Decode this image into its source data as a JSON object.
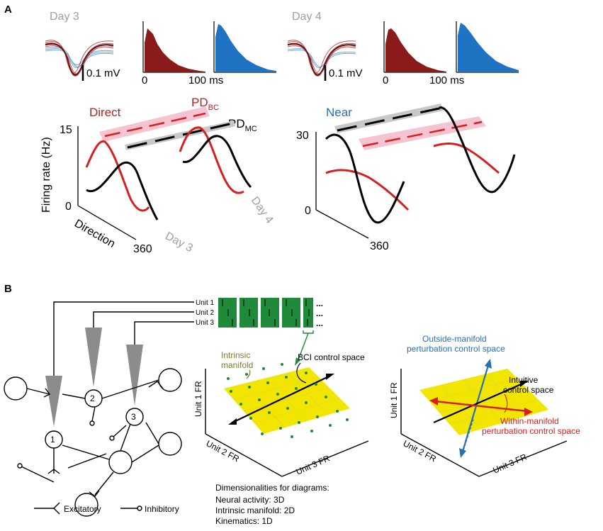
{
  "panel_a": {
    "letter": "A",
    "day3": {
      "label": "Day 3",
      "scale_bar": "0.1 mV",
      "hist_axis_start": "0",
      "hist_axis_end": "100 ms"
    },
    "day4": {
      "label": "Day 4",
      "scale_bar": "0.1 mV",
      "hist_axis_start": "0",
      "hist_axis_end": "100 ms"
    },
    "left_plot": {
      "title": "Direct",
      "pd_bc": "PD",
      "pd_bc_sub": "BC",
      "pd_mc": "PD",
      "pd_mc_sub": "MC",
      "ylabel": "Firing rate (Hz)",
      "y_max": "15",
      "y_min": "0",
      "xlabel": "Direction",
      "x_max": "360",
      "day_front": "Day 3",
      "day_back": "Day 4"
    },
    "right_plot": {
      "title": "Near",
      "y_max": "30",
      "y_min": "0",
      "x_max": "360"
    }
  },
  "panel_b": {
    "letter": "B",
    "units": [
      "Unit 1",
      "Unit 2",
      "Unit 3"
    ],
    "ellipsis": "...",
    "neurons": [
      "1",
      "2",
      "3"
    ],
    "legend": {
      "excitatory": "Excitatory",
      "inhibitory": "Inhibitory"
    },
    "middle": {
      "intrinsic_label": "Intrinsic",
      "manifold_label": "manifold",
      "bci_label": "BCI control space",
      "axis1": "Unit 1 FR",
      "axis2": "Unit 2 FR",
      "axis3": "Unit 3 FR"
    },
    "right": {
      "outside_line1": "Outside-manifold",
      "outside_line2": "perturbation control space",
      "intuitive_line1": "Intuitive",
      "intuitive_line2": "control space",
      "within_line1": "Within-manifold",
      "within_line2": "perturbation control space",
      "axis1": "Unit 1 FR",
      "axis2": "Unit 2 FR",
      "axis3": "Unit 3 FR"
    },
    "dimensionalities": {
      "heading": "Dimensionalities for diagrams:",
      "neural": "Neural activity: 3D",
      "manifold": "Intrinsic manifold: 2D",
      "kinematics": "Kinematics: 1D"
    }
  },
  "colors": {
    "red": "#b22222",
    "blue": "#2a6fb5",
    "yellow": "#f2e600",
    "green": "#1e8a3a",
    "gray": "#a0a0a0"
  }
}
